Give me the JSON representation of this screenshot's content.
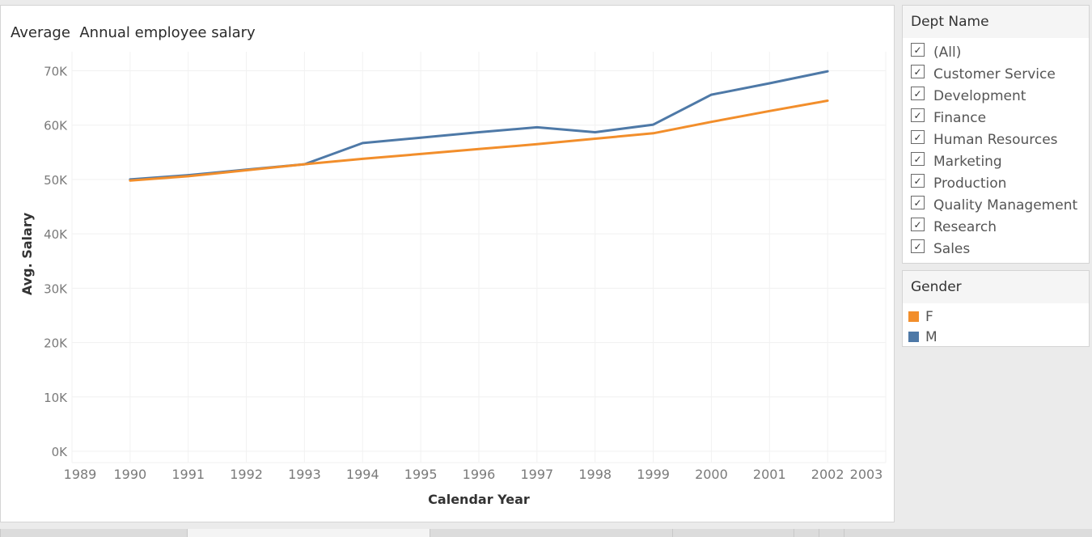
{
  "worksheet": {
    "title": "Average  Annual employee salary"
  },
  "chart_data": {
    "type": "line",
    "title": "Average  Annual employee salary",
    "xlabel": "Calendar Year",
    "ylabel": "Avg. Salary",
    "xlim": [
      1989,
      2003
    ],
    "ylim": [
      0,
      70000
    ],
    "x_ticks": [
      "1989",
      "1990",
      "1991",
      "1992",
      "1993",
      "1994",
      "1995",
      "1996",
      "1997",
      "1998",
      "1999",
      "2000",
      "2001",
      "2002",
      "2003"
    ],
    "y_ticks": [
      {
        "value": 0,
        "label": "0K"
      },
      {
        "value": 10000,
        "label": "10K"
      },
      {
        "value": 20000,
        "label": "20K"
      },
      {
        "value": 30000,
        "label": "30K"
      },
      {
        "value": 40000,
        "label": "40K"
      },
      {
        "value": 50000,
        "label": "50K"
      },
      {
        "value": 60000,
        "label": "60K"
      },
      {
        "value": 70000,
        "label": "70K"
      }
    ],
    "grid": true,
    "x": [
      1990,
      1991,
      1992,
      1993,
      1994,
      1995,
      1996,
      1997,
      1998,
      1999,
      2000,
      2001,
      2002
    ],
    "series": [
      {
        "name": "M",
        "color": "#4e79a7",
        "values": [
          50000,
          50800,
          51800,
          52800,
          56700,
          57700,
          58700,
          59600,
          58700,
          60100,
          65600,
          67700,
          69900
        ]
      },
      {
        "name": "F",
        "color": "#f28e2b",
        "values": [
          49800,
          50600,
          51700,
          52800,
          53800,
          54700,
          55600,
          56500,
          57500,
          58500,
          60600,
          62600,
          64500
        ]
      }
    ]
  },
  "dept_filter": {
    "title": "Dept Name",
    "items": [
      {
        "label": "(All)",
        "checked": true
      },
      {
        "label": "Customer Service",
        "checked": true
      },
      {
        "label": "Development",
        "checked": true
      },
      {
        "label": "Finance",
        "checked": true
      },
      {
        "label": "Human Resources",
        "checked": true
      },
      {
        "label": "Marketing",
        "checked": true
      },
      {
        "label": "Production",
        "checked": true
      },
      {
        "label": "Quality Management",
        "checked": true
      },
      {
        "label": "Research",
        "checked": true
      },
      {
        "label": "Sales",
        "checked": true
      }
    ]
  },
  "gender_legend": {
    "title": "Gender",
    "items": [
      {
        "label": "F",
        "color": "#f28e2b"
      },
      {
        "label": "M",
        "color": "#4e79a7"
      }
    ]
  }
}
